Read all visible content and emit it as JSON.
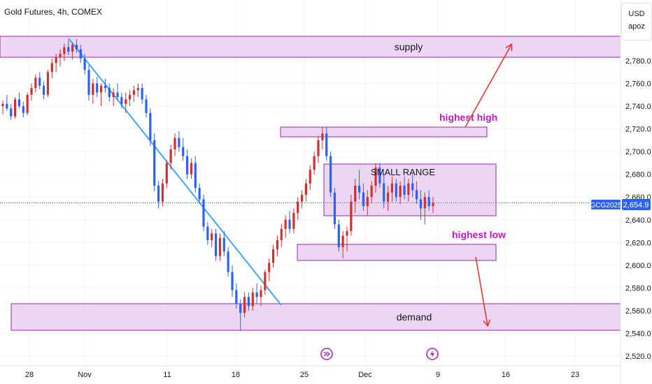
{
  "header": {
    "title": "Gold Futures, 4h, COMEX"
  },
  "currency": {
    "code": "USD",
    "sub": "apoz"
  },
  "symbol_label": "GCG2025",
  "current_price": "2,654.9",
  "colors": {
    "up": "#d32f2f",
    "down": "#2962ff",
    "zone_fill": "#e6c8ee",
    "zone_stroke": "#9c27b0",
    "trend_line": "#42a5f5",
    "annotation_text": "#c218c2",
    "arrow": "#e53935",
    "price_line": "#2962ff"
  },
  "chart_data": {
    "type": "candlestick",
    "y_ticks": [
      "2,780.0",
      "2,760.0",
      "2,740.0",
      "2,720.0",
      "2,700.0",
      "2,680.0",
      "2,660.0",
      "2,640.0",
      "2,620.0",
      "2,600.0",
      "2,580.0",
      "2,560.0",
      "2,540.0",
      "2,520.0"
    ],
    "x_ticks": [
      "28",
      "Nov",
      "11",
      "18",
      "25",
      "Dec",
      "9",
      "16",
      "23"
    ],
    "ylim": [
      2513,
      2800
    ],
    "series": [
      {
        "ohlc": [
          [
            2740,
            2745,
            2733,
            2742
          ],
          [
            2742,
            2750,
            2736,
            2738
          ],
          [
            2738,
            2742,
            2728,
            2731
          ],
          [
            2731,
            2748,
            2729,
            2746
          ],
          [
            2746,
            2752,
            2738,
            2740
          ],
          [
            2740,
            2744,
            2730,
            2734
          ],
          [
            2734,
            2752,
            2732,
            2750
          ],
          [
            2750,
            2760,
            2745,
            2756
          ],
          [
            2756,
            2768,
            2752,
            2765
          ],
          [
            2765,
            2770,
            2755,
            2758
          ],
          [
            2758,
            2762,
            2746,
            2750
          ],
          [
            2750,
            2772,
            2748,
            2770
          ],
          [
            2770,
            2782,
            2765,
            2778
          ],
          [
            2778,
            2786,
            2770,
            2783
          ],
          [
            2783,
            2790,
            2775,
            2786
          ],
          [
            2786,
            2795,
            2780,
            2792
          ],
          [
            2792,
            2798,
            2785,
            2788
          ],
          [
            2788,
            2796,
            2781,
            2794
          ],
          [
            2794,
            2799,
            2787,
            2790
          ],
          [
            2790,
            2794,
            2778,
            2782
          ],
          [
            2782,
            2786,
            2768,
            2772
          ],
          [
            2772,
            2776,
            2745,
            2750
          ],
          [
            2750,
            2764,
            2742,
            2760
          ],
          [
            2760,
            2766,
            2748,
            2752
          ],
          [
            2752,
            2760,
            2740,
            2758
          ],
          [
            2758,
            2764,
            2752,
            2756
          ],
          [
            2756,
            2760,
            2744,
            2748
          ],
          [
            2748,
            2756,
            2740,
            2752
          ],
          [
            2752,
            2760,
            2745,
            2748
          ],
          [
            2748,
            2752,
            2738,
            2742
          ],
          [
            2742,
            2752,
            2734,
            2746
          ],
          [
            2746,
            2754,
            2740,
            2750
          ],
          [
            2750,
            2758,
            2744,
            2754
          ],
          [
            2754,
            2760,
            2748,
            2756
          ],
          [
            2756,
            2760,
            2742,
            2746
          ],
          [
            2746,
            2750,
            2730,
            2734
          ],
          [
            2734,
            2738,
            2705,
            2710
          ],
          [
            2710,
            2716,
            2665,
            2670
          ],
          [
            2670,
            2674,
            2650,
            2656
          ],
          [
            2656,
            2676,
            2652,
            2672
          ],
          [
            2672,
            2692,
            2668,
            2690
          ],
          [
            2690,
            2706,
            2684,
            2702
          ],
          [
            2702,
            2716,
            2696,
            2712
          ],
          [
            2712,
            2718,
            2700,
            2704
          ],
          [
            2704,
            2712,
            2692,
            2696
          ],
          [
            2696,
            2702,
            2676,
            2680
          ],
          [
            2680,
            2694,
            2676,
            2690
          ],
          [
            2690,
            2696,
            2664,
            2668
          ],
          [
            2668,
            2672,
            2654,
            2658
          ],
          [
            2658,
            2662,
            2630,
            2634
          ],
          [
            2634,
            2638,
            2618,
            2622
          ],
          [
            2622,
            2632,
            2616,
            2628
          ],
          [
            2628,
            2632,
            2604,
            2608
          ],
          [
            2608,
            2628,
            2604,
            2624
          ],
          [
            2624,
            2630,
            2608,
            2612
          ],
          [
            2612,
            2616,
            2590,
            2594
          ],
          [
            2594,
            2600,
            2572,
            2578
          ],
          [
            2578,
            2584,
            2562,
            2566
          ],
          [
            2566,
            2570,
            2542,
            2558
          ],
          [
            2558,
            2576,
            2554,
            2572
          ],
          [
            2572,
            2576,
            2560,
            2564
          ],
          [
            2564,
            2580,
            2560,
            2576
          ],
          [
            2576,
            2584,
            2566,
            2572
          ],
          [
            2572,
            2582,
            2564,
            2578
          ],
          [
            2578,
            2596,
            2574,
            2594
          ],
          [
            2594,
            2606,
            2586,
            2602
          ],
          [
            2602,
            2618,
            2598,
            2614
          ],
          [
            2614,
            2626,
            2608,
            2622
          ],
          [
            2622,
            2636,
            2616,
            2632
          ],
          [
            2632,
            2644,
            2624,
            2640
          ],
          [
            2640,
            2648,
            2628,
            2632
          ],
          [
            2632,
            2650,
            2628,
            2646
          ],
          [
            2646,
            2660,
            2640,
            2656
          ],
          [
            2656,
            2666,
            2650,
            2662
          ],
          [
            2662,
            2676,
            2656,
            2672
          ],
          [
            2672,
            2688,
            2666,
            2684
          ],
          [
            2684,
            2700,
            2680,
            2696
          ],
          [
            2696,
            2714,
            2690,
            2710
          ],
          [
            2710,
            2722,
            2702,
            2716
          ],
          [
            2716,
            2722,
            2692,
            2696
          ],
          [
            2696,
            2700,
            2660,
            2664
          ],
          [
            2664,
            2668,
            2632,
            2636
          ],
          [
            2636,
            2640,
            2612,
            2616
          ],
          [
            2616,
            2630,
            2606,
            2626
          ],
          [
            2626,
            2634,
            2612,
            2630
          ],
          [
            2630,
            2662,
            2626,
            2656
          ],
          [
            2656,
            2676,
            2646,
            2670
          ],
          [
            2670,
            2684,
            2658,
            2664
          ],
          [
            2664,
            2672,
            2648,
            2652
          ],
          [
            2652,
            2666,
            2644,
            2660
          ],
          [
            2660,
            2674,
            2654,
            2670
          ],
          [
            2670,
            2690,
            2664,
            2686
          ],
          [
            2686,
            2690,
            2668,
            2672
          ],
          [
            2672,
            2680,
            2650,
            2656
          ],
          [
            2656,
            2670,
            2648,
            2664
          ],
          [
            2664,
            2678,
            2656,
            2672
          ],
          [
            2672,
            2676,
            2656,
            2660
          ],
          [
            2660,
            2674,
            2654,
            2670
          ],
          [
            2670,
            2678,
            2658,
            2662
          ],
          [
            2662,
            2676,
            2656,
            2672
          ],
          [
            2672,
            2680,
            2660,
            2666
          ],
          [
            2666,
            2674,
            2654,
            2658
          ],
          [
            2658,
            2666,
            2640,
            2650
          ],
          [
            2650,
            2664,
            2636,
            2660
          ],
          [
            2660,
            2666,
            2648,
            2652
          ],
          [
            2652,
            2660,
            2646,
            2654.9
          ]
        ]
      }
    ],
    "zones": [
      {
        "name": "supply",
        "label": "supply",
        "y_top": 2794,
        "y_bottom": 2783
      },
      {
        "name": "highest-high",
        "label": "highest high",
        "y_top": 2722,
        "y_bottom": 2716
      },
      {
        "name": "small-range",
        "label": "SMALL RANGE",
        "y_top": 2690,
        "y_bottom": 2644
      },
      {
        "name": "highest-low",
        "label": "highest low",
        "y_top": 2618,
        "y_bottom": 2605
      },
      {
        "name": "demand",
        "label": "demand",
        "y_top": 2567,
        "y_bottom": 2543
      }
    ],
    "price_line": 2654.9
  }
}
